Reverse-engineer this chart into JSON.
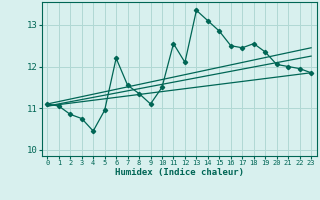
{
  "xlabel": "Humidex (Indice chaleur)",
  "bg_color": "#d8f0ee",
  "grid_color": "#b0d8d4",
  "line_color": "#006655",
  "xlim": [
    -0.5,
    23.5
  ],
  "ylim": [
    9.85,
    13.55
  ],
  "yticks": [
    10,
    11,
    12,
    13
  ],
  "xticks": [
    0,
    1,
    2,
    3,
    4,
    5,
    6,
    7,
    8,
    9,
    10,
    11,
    12,
    13,
    14,
    15,
    16,
    17,
    18,
    19,
    20,
    21,
    22,
    23
  ],
  "main_x": [
    0,
    1,
    2,
    3,
    4,
    5,
    6,
    7,
    8,
    9,
    10,
    11,
    12,
    13,
    14,
    15,
    16,
    17,
    18,
    19,
    20,
    21,
    22,
    23
  ],
  "main_y": [
    11.1,
    11.05,
    10.85,
    10.75,
    10.45,
    10.95,
    12.2,
    11.55,
    11.35,
    11.1,
    11.5,
    12.55,
    12.1,
    13.35,
    13.1,
    12.85,
    12.5,
    12.45,
    12.55,
    12.35,
    12.05,
    12.0,
    11.95,
    11.85
  ],
  "line1_x": [
    0,
    23
  ],
  "line1_y": [
    11.05,
    11.85
  ],
  "line2_x": [
    0,
    23
  ],
  "line2_y": [
    11.05,
    12.25
  ],
  "line3_x": [
    0,
    23
  ],
  "line3_y": [
    11.1,
    12.45
  ]
}
